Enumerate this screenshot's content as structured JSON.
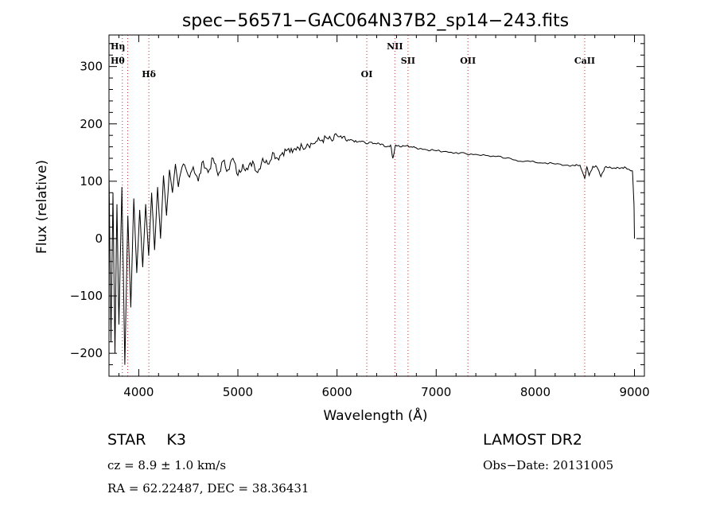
{
  "chart_data": {
    "type": "line",
    "title": "spec−56571−GAC064N37B2_sp14−243.fits",
    "xlabel": "Wavelength (Å)",
    "ylabel": "Flux (relative)",
    "xlim": [
      3700,
      9100
    ],
    "ylim": [
      -240,
      355
    ],
    "xticks": [
      4000,
      5000,
      6000,
      7000,
      8000,
      9000
    ],
    "yticks": [
      -200,
      -100,
      0,
      100,
      200,
      300
    ],
    "xtick_labels": [
      "4000",
      "5000",
      "6000",
      "7000",
      "8000",
      "9000"
    ],
    "ytick_labels": [
      "−200",
      "−100",
      "0",
      "100",
      "200",
      "300"
    ],
    "grid": false,
    "series": [
      {
        "x": [
          3700,
          3720,
          3740,
          3760,
          3780,
          3800,
          3830,
          3860,
          3890,
          3920,
          3950,
          3980,
          4010,
          4040,
          4070,
          4100,
          4130,
          4160,
          4190,
          4220,
          4250,
          4280,
          4310,
          4340,
          4370,
          4400,
          4450,
          4500,
          4550,
          4600,
          4650,
          4700,
          4750,
          4800,
          4850,
          4900,
          4950,
          5000,
          5050,
          5100,
          5150,
          5200,
          5250,
          5300,
          5350,
          5400,
          5450,
          5500,
          5550,
          5600,
          5650,
          5700,
          5750,
          5800,
          5850,
          5900,
          5950,
          6000,
          6050,
          6100,
          6150,
          6200,
          6250,
          6300,
          6350,
          6400,
          6450,
          6500,
          6540,
          6563,
          6590,
          6650,
          6700,
          6750,
          6800,
          6850,
          6900,
          6950,
          7000,
          7100,
          7200,
          7300,
          7400,
          7500,
          7600,
          7700,
          7800,
          7900,
          8000,
          8100,
          8200,
          8300,
          8400,
          8450,
          8498,
          8520,
          8542,
          8580,
          8620,
          8662,
          8700,
          8750,
          8800,
          8850,
          8900,
          8950,
          8980,
          8995,
          9000
        ],
        "y": [
          120,
          -180,
          80,
          -200,
          60,
          -150,
          90,
          -220,
          40,
          -120,
          70,
          -60,
          50,
          -50,
          60,
          -30,
          80,
          -20,
          90,
          0,
          110,
          40,
          120,
          80,
          130,
          90,
          130,
          110,
          125,
          100,
          135,
          115,
          140,
          110,
          135,
          120,
          140,
          110,
          130,
          120,
          135,
          115,
          140,
          130,
          150,
          140,
          150,
          155,
          150,
          160,
          160,
          165,
          165,
          170,
          172,
          175,
          170,
          180,
          175,
          170,
          172,
          168,
          170,
          165,
          168,
          165,
          165,
          160,
          163,
          140,
          163,
          160,
          162,
          160,
          158,
          157,
          155,
          155,
          153,
          152,
          150,
          148,
          147,
          145,
          143,
          140,
          137,
          135,
          133,
          132,
          130,
          128,
          127,
          128,
          105,
          125,
          110,
          126,
          125,
          108,
          124,
          125,
          123,
          122,
          125,
          120,
          118,
          60,
          0
        ]
      }
    ],
    "lines": [
      {
        "label": "Hη",
        "x": 3835
      },
      {
        "label": "Hθ",
        "x": 3889
      },
      {
        "label": "Hδ",
        "x": 4102
      },
      {
        "label": "OI",
        "x": 6300
      },
      {
        "label": "NII",
        "x": 6583
      },
      {
        "label": "SII",
        "x": 6716
      },
      {
        "label": "OII",
        "x": 7320
      },
      {
        "label": "CaII",
        "x": 8498
      }
    ],
    "line_color": "#c03030"
  },
  "info": {
    "object": "STAR",
    "subclass": "K3",
    "survey": "LAMOST DR2",
    "cz": "cz = 8.9 ± 1.0 km/s",
    "obs_date": "Obs−Date: 20131005",
    "coords": "RA =  62.22487, DEC =  38.36431"
  }
}
